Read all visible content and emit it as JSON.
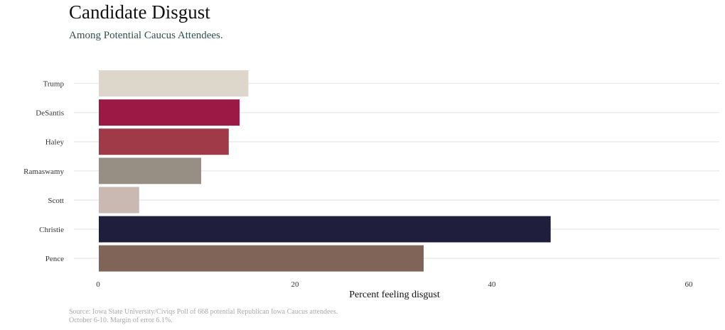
{
  "chart_data": {
    "type": "bar",
    "orientation": "horizontal",
    "title": "Candidate Disgust",
    "subtitle": "Among Potential Caucus Attendees.",
    "xlabel": "Percent feeling disgust",
    "ylabel": "",
    "categories": [
      "Trump",
      "DeSantis",
      "Haley",
      "Ramaswamy",
      "Scott",
      "Christie",
      "Pence"
    ],
    "values": [
      15.2,
      14.3,
      13.2,
      10.4,
      4.1,
      45.9,
      33.0
    ],
    "colors": [
      "#ddd7cb",
      "#9b1944",
      "#a03a48",
      "#978f83",
      "#c9b9b2",
      "#1f1f3d",
      "#7f6457"
    ],
    "xlim": [
      -2.5,
      63
    ],
    "xticks": [
      0,
      20,
      40,
      60
    ],
    "xtick_labels": [
      "0",
      "20",
      "40",
      "60"
    ],
    "grid": "horizontal",
    "legend": "none",
    "source_lines": [
      "Source: Iowa State University/Civiqs Poll of 668 potential Republican Iowa Caucus attendees.",
      "October 6-10.  Margin of error 6.1%."
    ]
  }
}
